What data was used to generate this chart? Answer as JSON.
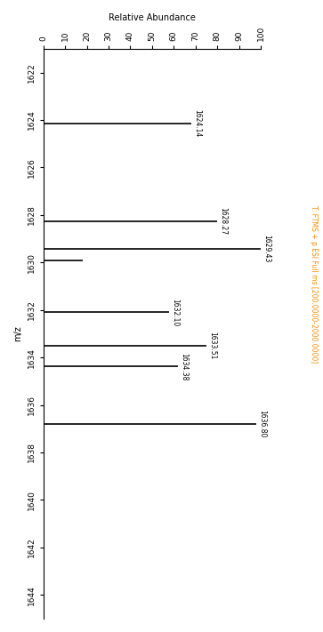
{
  "peaks": [
    {
      "mz": 1624.14,
      "abundance": 68
    },
    {
      "mz": 1628.27,
      "abundance": 80
    },
    {
      "mz": 1629.43,
      "abundance": 100
    },
    {
      "mz": 1629.9,
      "abundance": 18
    },
    {
      "mz": 1632.1,
      "abundance": 58
    },
    {
      "mz": 1633.51,
      "abundance": 75
    },
    {
      "mz": 1634.38,
      "abundance": 62
    },
    {
      "mz": 1636.8,
      "abundance": 98
    }
  ],
  "labeled_peaks": [
    1624.14,
    1628.27,
    1629.43,
    1632.1,
    1633.51,
    1634.38,
    1636.8
  ],
  "mz_min": 1621,
  "mz_max": 1645,
  "abundance_min": 0,
  "abundance_max": 100,
  "xlabel": "Relative Abundance",
  "ylabel": "m/z",
  "side_label": "T: FTMS + p ESI Full ms [200.0000-2000.0000]",
  "tick_interval_mz": 2,
  "tick_interval_abundance": 10,
  "bar_color": "black",
  "background_color": "white",
  "figure_width": 3.63,
  "figure_height": 7.11
}
